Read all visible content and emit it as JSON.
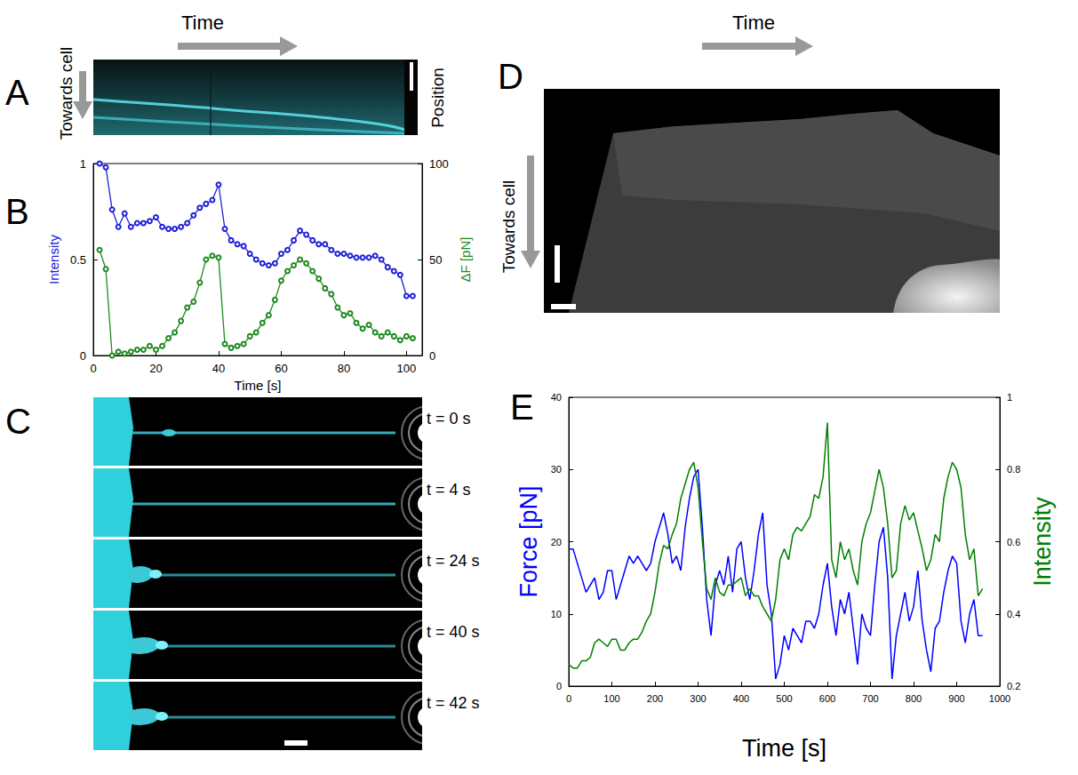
{
  "chart_data": [
    {
      "type": "line",
      "xlabel": "Time [s]",
      "ylabel": "Intensity",
      "y2label": "ΔF [pN]",
      "x": [
        2,
        4,
        6,
        8,
        10,
        12,
        14,
        16,
        18,
        20,
        22,
        24,
        26,
        28,
        30,
        32,
        34,
        36,
        38,
        40,
        42,
        44,
        46,
        48,
        50,
        52,
        54,
        56,
        58,
        60,
        62,
        64,
        66,
        68,
        70,
        72,
        74,
        76,
        78,
        80,
        82,
        84,
        86,
        88,
        90,
        92,
        94,
        96,
        98,
        100,
        102
      ],
      "xlim": [
        0,
        105
      ],
      "xticks": [
        0,
        20,
        40,
        60,
        80,
        100
      ],
      "ylim": [
        0,
        1
      ],
      "yticks": [
        0,
        0.5,
        1
      ],
      "y2lim": [
        0,
        100
      ],
      "y2ticks": [
        0,
        50,
        100
      ],
      "grid": false,
      "series": [
        {
          "color": "#2020d8",
          "marker": "circle",
          "line_style": "solid",
          "values": [
            1.0,
            0.98,
            0.76,
            0.67,
            0.74,
            0.67,
            0.69,
            0.69,
            0.7,
            0.72,
            0.67,
            0.66,
            0.66,
            0.67,
            0.69,
            0.73,
            0.77,
            0.79,
            0.81,
            0.89,
            0.66,
            0.6,
            0.58,
            0.57,
            0.53,
            0.5,
            0.48,
            0.47,
            0.48,
            0.53,
            0.55,
            0.6,
            0.65,
            0.63,
            0.6,
            0.58,
            0.58,
            0.55,
            0.53,
            0.53,
            0.52,
            0.51,
            0.51,
            0.51,
            0.52,
            0.5,
            0.46,
            0.44,
            0.42,
            0.31,
            0.31
          ]
        },
        {
          "color": "#1f8a1f",
          "marker": "circle",
          "line_style": "solid",
          "axis": "y2",
          "values": [
            55,
            45,
            0,
            2,
            1,
            2,
            3,
            3,
            5,
            3,
            5,
            9,
            12,
            18,
            25,
            28,
            38,
            50,
            52,
            51,
            6,
            4,
            5,
            6,
            10,
            12,
            17,
            21,
            29,
            39,
            44,
            47,
            50,
            48,
            44,
            40,
            35,
            32,
            25,
            21,
            22,
            17,
            14,
            16,
            12,
            10,
            12,
            10,
            8,
            10,
            9
          ]
        }
      ]
    },
    {
      "type": "line",
      "xlabel": "Time [s]",
      "ylabel": "Force [pN]",
      "y2label": "Intensity",
      "x": [
        0,
        10,
        20,
        30,
        40,
        50,
        60,
        70,
        80,
        90,
        100,
        110,
        120,
        130,
        140,
        150,
        160,
        170,
        180,
        190,
        200,
        210,
        220,
        230,
        240,
        250,
        260,
        270,
        280,
        290,
        300,
        310,
        320,
        330,
        340,
        350,
        360,
        370,
        380,
        390,
        400,
        410,
        420,
        430,
        440,
        450,
        460,
        470,
        480,
        490,
        500,
        510,
        520,
        530,
        540,
        550,
        560,
        570,
        580,
        590,
        600,
        610,
        620,
        630,
        640,
        650,
        660,
        670,
        680,
        690,
        700,
        710,
        720,
        730,
        740,
        750,
        760,
        770,
        780,
        790,
        800,
        810,
        820,
        830,
        840,
        850,
        860,
        870,
        880,
        890,
        900,
        910,
        920,
        930,
        940,
        950,
        960
      ],
      "xlim": [
        0,
        1000
      ],
      "xticks": [
        0,
        100,
        200,
        300,
        400,
        500,
        600,
        700,
        800,
        900,
        1000
      ],
      "ylim": [
        0,
        40
      ],
      "yticks": [
        0,
        10,
        20,
        30,
        40
      ],
      "y2lim": [
        0.2,
        1
      ],
      "y2ticks": [
        0.2,
        0.4,
        0.6,
        0.8,
        1
      ],
      "grid": false,
      "series": [
        {
          "color": "#0000ff",
          "marker": "none",
          "line_style": "solid",
          "values": [
            19,
            19,
            17,
            15,
            13,
            14,
            15,
            12,
            13,
            16,
            16,
            12,
            14,
            16,
            18,
            17,
            18,
            17,
            16,
            17,
            20,
            22,
            24,
            21,
            17,
            18,
            16,
            22,
            26,
            29,
            30,
            22,
            12,
            7,
            14,
            16,
            14,
            18,
            13,
            19,
            20,
            15,
            12,
            16,
            21,
            24,
            14,
            10,
            1,
            3,
            7,
            5,
            8,
            7,
            6,
            9,
            9,
            8,
            10,
            14,
            17,
            11,
            7,
            12,
            10,
            13,
            8,
            3,
            10,
            8,
            7,
            14,
            20,
            22,
            15,
            1,
            7,
            10,
            13,
            9,
            11,
            16,
            9,
            5,
            2,
            8,
            9,
            13,
            16,
            18,
            17,
            9,
            6,
            10,
            12,
            7,
            7
          ]
        },
        {
          "color": "#008000",
          "marker": "none",
          "line_style": "solid",
          "axis": "y2",
          "values": [
            0.26,
            0.25,
            0.25,
            0.27,
            0.27,
            0.28,
            0.32,
            0.33,
            0.32,
            0.31,
            0.33,
            0.33,
            0.3,
            0.3,
            0.32,
            0.33,
            0.33,
            0.35,
            0.38,
            0.4,
            0.46,
            0.54,
            0.59,
            0.58,
            0.62,
            0.65,
            0.72,
            0.76,
            0.8,
            0.82,
            0.75,
            0.6,
            0.47,
            0.44,
            0.5,
            0.46,
            0.45,
            0.48,
            0.48,
            0.49,
            0.5,
            0.45,
            0.47,
            0.45,
            0.45,
            0.42,
            0.4,
            0.38,
            0.44,
            0.55,
            0.58,
            0.55,
            0.62,
            0.64,
            0.63,
            0.65,
            0.67,
            0.73,
            0.72,
            0.78,
            0.93,
            0.55,
            0.5,
            0.6,
            0.55,
            0.58,
            0.52,
            0.48,
            0.6,
            0.65,
            0.68,
            0.74,
            0.8,
            0.75,
            0.65,
            0.5,
            0.52,
            0.65,
            0.7,
            0.66,
            0.68,
            0.63,
            0.58,
            0.52,
            0.55,
            0.62,
            0.6,
            0.72,
            0.78,
            0.82,
            0.8,
            0.75,
            0.62,
            0.55,
            0.58,
            0.45,
            0.47
          ]
        }
      ]
    }
  ],
  "figure": {
    "letters": [
      "A",
      "B",
      "C",
      "D",
      "E"
    ],
    "A": {
      "time_label": "Time",
      "direction_label": "Towards cell",
      "position_label": "Position"
    },
    "C": {
      "frames": [
        "t = 0 s",
        "t = 4 s",
        "t = 24 s",
        "t = 40 s",
        "t = 42 s"
      ]
    },
    "D": {
      "time_label": "Time",
      "direction_label": "Towards cell"
    }
  }
}
